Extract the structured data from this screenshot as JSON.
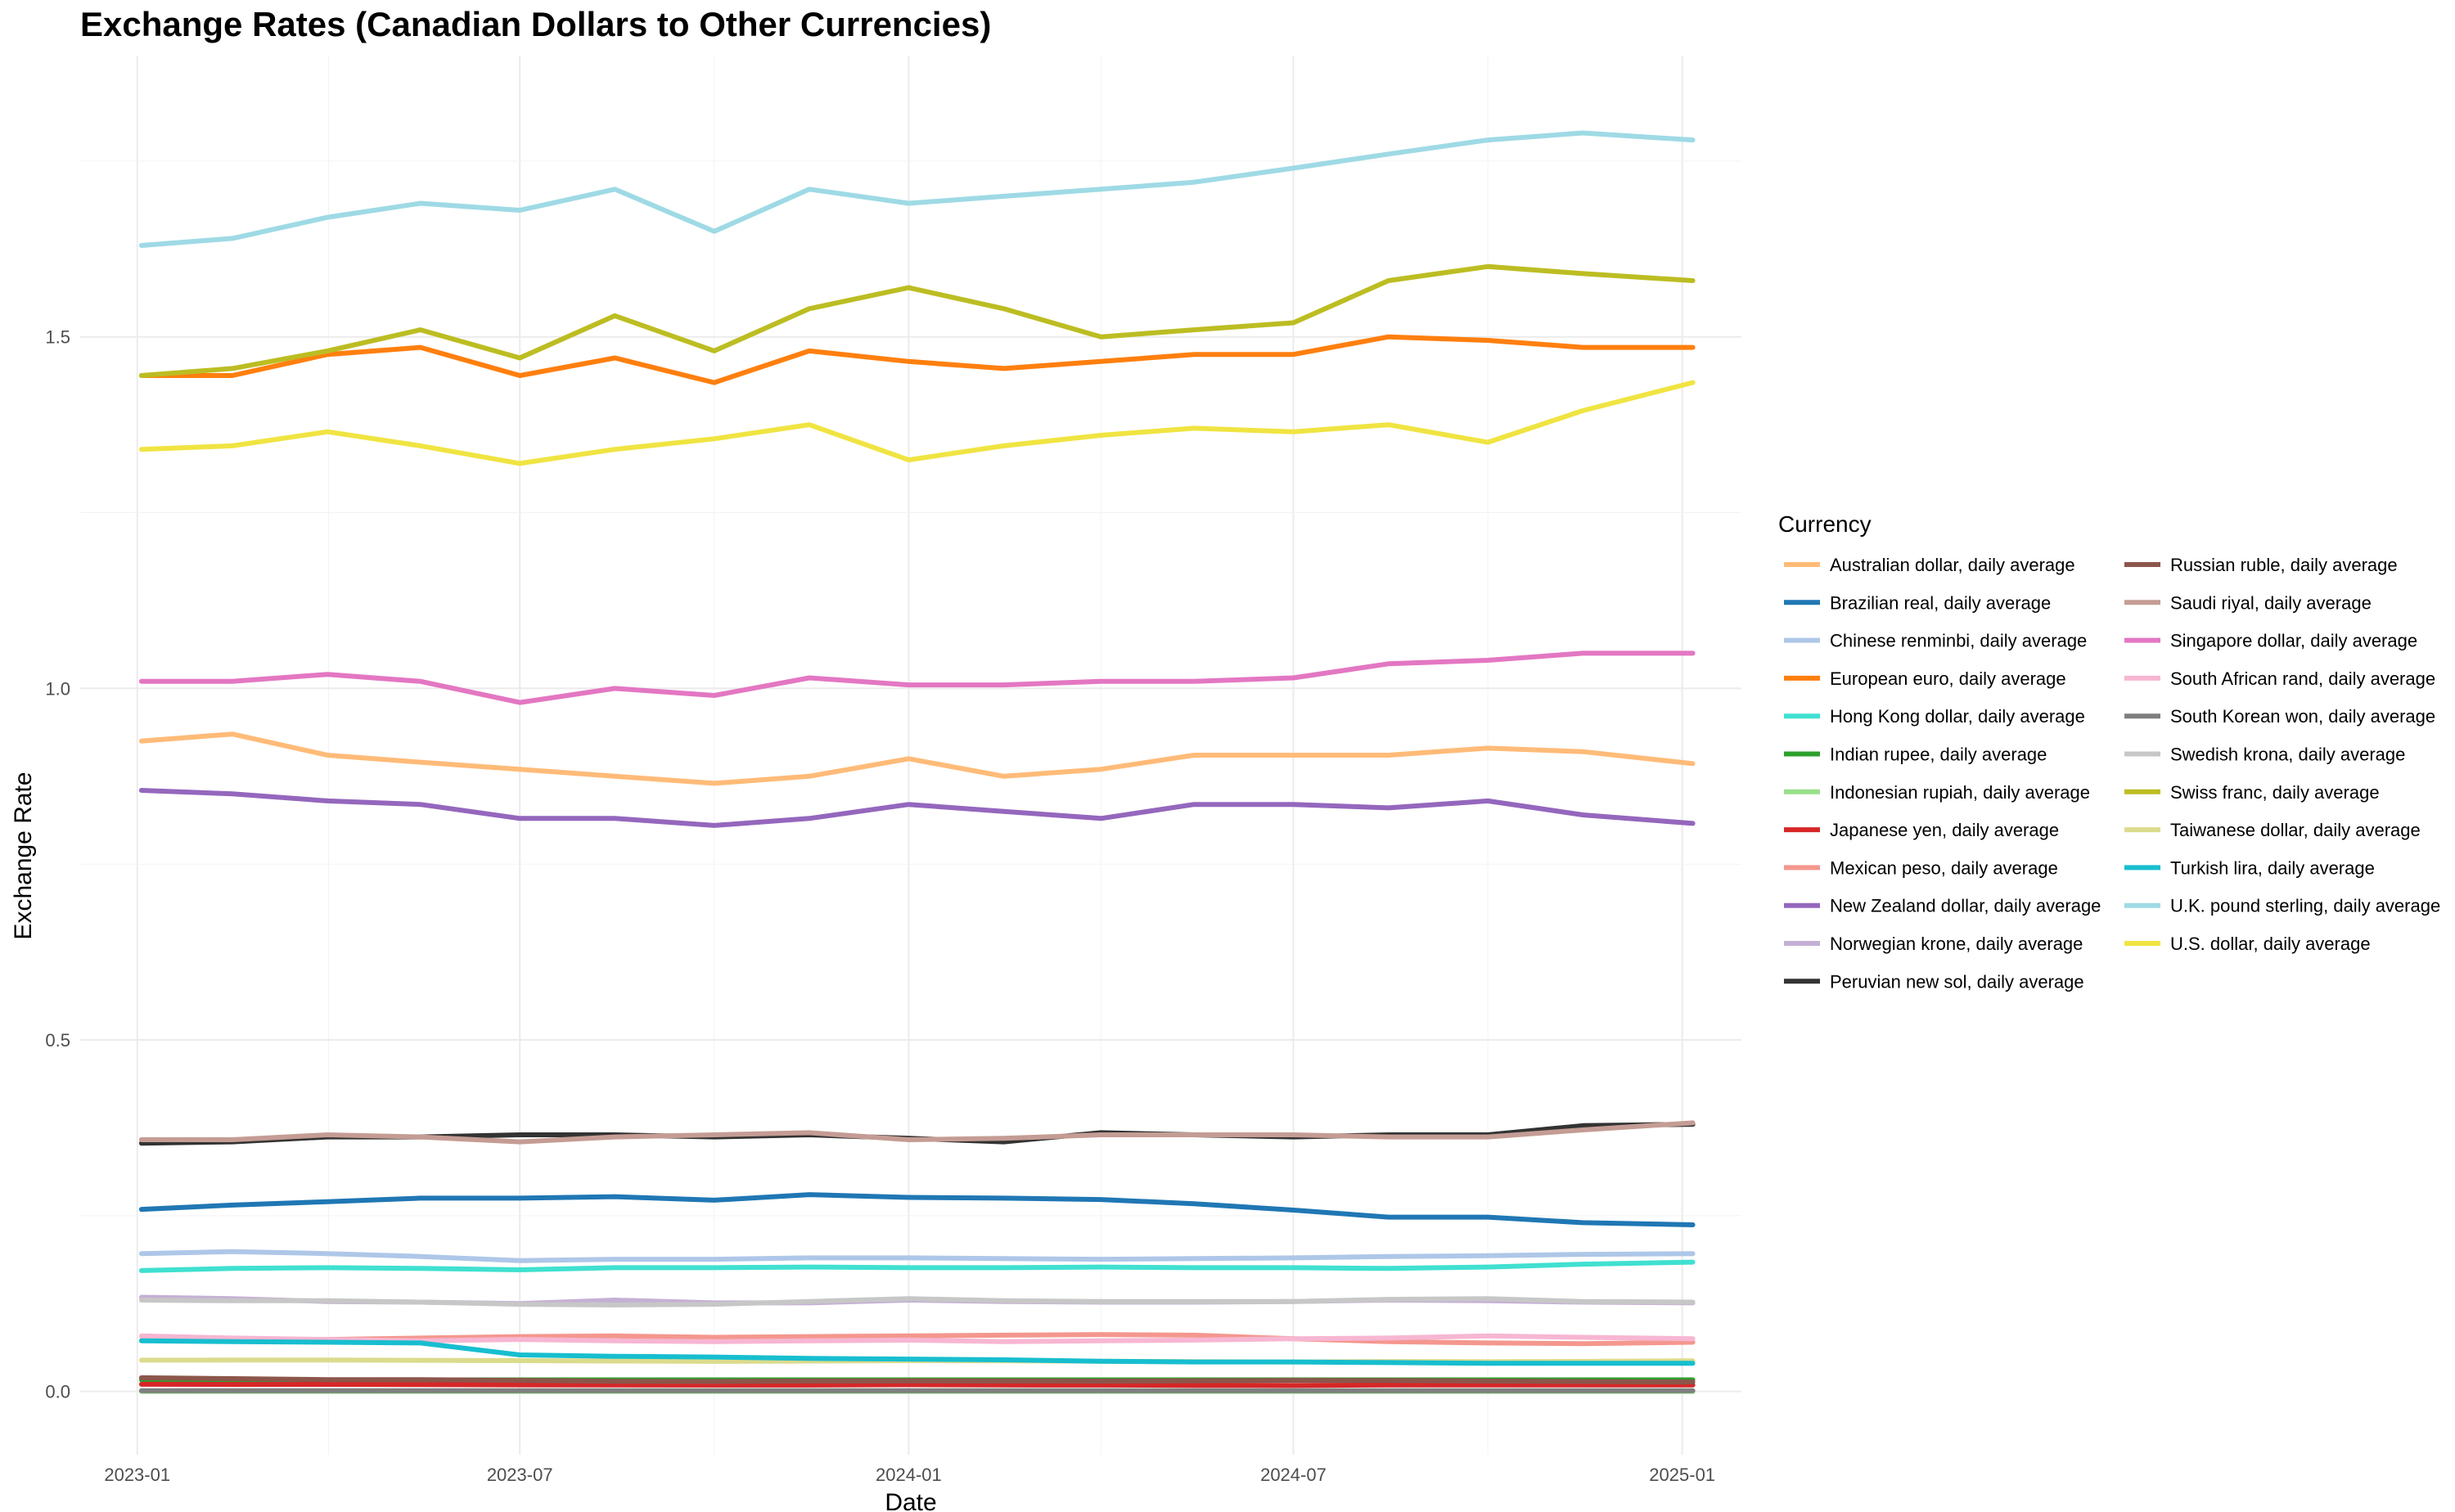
{
  "chart_data": {
    "type": "line",
    "title": "Exchange Rates (Canadian Dollars to Other Currencies)",
    "xlabel": "Date",
    "ylabel": "Exchange Rate",
    "x_tick_labels": [
      "2023-01",
      "2023-07",
      "2024-01",
      "2024-07",
      "2025-01"
    ],
    "y_tick_labels": [
      "0.0",
      "0.5",
      "1.0",
      "1.5"
    ],
    "y_ticks": [
      0,
      0.5,
      1.0,
      1.5
    ],
    "ylim": [
      -0.09,
      1.9
    ],
    "xlim": [
      "2022-12-05",
      "2025-01-29"
    ],
    "x": [
      "2023-01-03",
      "2023-02-15",
      "2023-04-01",
      "2023-05-15",
      "2023-07-01",
      "2023-08-15",
      "2023-10-01",
      "2023-11-15",
      "2024-01-01",
      "2024-02-15",
      "2024-04-01",
      "2024-05-15",
      "2024-07-01",
      "2024-08-15",
      "2024-10-01",
      "2024-11-15",
      "2025-01-06"
    ],
    "grid": true,
    "legend": {
      "title": "Currency",
      "position": "right",
      "columns": 2
    },
    "series": [
      {
        "name": "Australian dollar, daily average",
        "color": "#ffbb78",
        "values": [
          0.925,
          0.935,
          0.905,
          0.895,
          0.885,
          0.875,
          0.865,
          0.875,
          0.9,
          0.875,
          0.885,
          0.905,
          0.905,
          0.905,
          0.915,
          0.91,
          0.893
        ]
      },
      {
        "name": "Brazilian real, daily average",
        "color": "#1f77b4",
        "values": [
          0.259,
          0.265,
          0.27,
          0.275,
          0.275,
          0.277,
          0.272,
          0.28,
          0.276,
          0.275,
          0.273,
          0.267,
          0.258,
          0.248,
          0.248,
          0.24,
          0.237
        ]
      },
      {
        "name": "Chinese renminbi, daily average",
        "color": "#aec7e8",
        "values": [
          0.196,
          0.199,
          0.196,
          0.192,
          0.186,
          0.188,
          0.188,
          0.19,
          0.19,
          0.189,
          0.188,
          0.189,
          0.19,
          0.192,
          0.193,
          0.195,
          0.196
        ]
      },
      {
        "name": "European euro, daily average",
        "color": "#ff7f0e",
        "values": [
          1.445,
          1.445,
          1.475,
          1.485,
          1.445,
          1.47,
          1.435,
          1.48,
          1.465,
          1.455,
          1.465,
          1.475,
          1.475,
          1.5,
          1.495,
          1.485,
          1.485
        ]
      },
      {
        "name": "Hong Kong dollar, daily average",
        "color": "#40e0d0",
        "values": [
          0.172,
          0.175,
          0.176,
          0.175,
          0.173,
          0.176,
          0.176,
          0.177,
          0.176,
          0.176,
          0.177,
          0.176,
          0.176,
          0.175,
          0.177,
          0.181,
          0.184
        ]
      },
      {
        "name": "Indian rupee, daily average",
        "color": "#2ca02c",
        "values": [
          0.0165,
          0.0165,
          0.0165,
          0.0165,
          0.0165,
          0.0165,
          0.0165,
          0.0165,
          0.0165,
          0.0165,
          0.0165,
          0.0165,
          0.0165,
          0.0165,
          0.0165,
          0.0165,
          0.0165
        ]
      },
      {
        "name": "Indonesian rupiah, daily average",
        "color": "#98df8a",
        "values": [
          0.0001,
          0.0001,
          0.0001,
          0.0001,
          0.0001,
          0.0001,
          0.0001,
          0.0001,
          0.0001,
          0.0001,
          0.0001,
          0.0001,
          0.0001,
          0.0001,
          0.0001,
          0.0001,
          0.0001
        ]
      },
      {
        "name": "Japanese yen, daily average",
        "color": "#d62728",
        "values": [
          0.0102,
          0.01,
          0.0101,
          0.0098,
          0.0094,
          0.0093,
          0.009,
          0.009,
          0.0096,
          0.0091,
          0.009,
          0.0087,
          0.0085,
          0.0093,
          0.0093,
          0.0091,
          0.0091
        ]
      },
      {
        "name": "Mexican peso, daily average",
        "color": "#f4978e",
        "values": [
          0.0725,
          0.073,
          0.074,
          0.076,
          0.078,
          0.079,
          0.077,
          0.078,
          0.079,
          0.08,
          0.081,
          0.08,
          0.075,
          0.071,
          0.069,
          0.068,
          0.07
        ]
      },
      {
        "name": "New Zealand dollar, daily average",
        "color": "#9467bd",
        "values": [
          0.855,
          0.85,
          0.84,
          0.835,
          0.815,
          0.815,
          0.805,
          0.815,
          0.835,
          0.825,
          0.815,
          0.835,
          0.835,
          0.83,
          0.84,
          0.82,
          0.808
        ]
      },
      {
        "name": "Norwegian krone, daily average",
        "color": "#c5b0d5",
        "values": [
          0.134,
          0.132,
          0.128,
          0.127,
          0.125,
          0.13,
          0.126,
          0.126,
          0.13,
          0.128,
          0.127,
          0.127,
          0.128,
          0.13,
          0.129,
          0.127,
          0.126
        ]
      },
      {
        "name": "Peruvian new sol, daily average",
        "color": "#333333",
        "values": [
          0.353,
          0.355,
          0.362,
          0.362,
          0.365,
          0.365,
          0.362,
          0.365,
          0.36,
          0.355,
          0.368,
          0.365,
          0.362,
          0.365,
          0.365,
          0.378,
          0.38
        ]
      },
      {
        "name": "Russian ruble, daily average",
        "color": "#8c564b",
        "values": [
          0.0195,
          0.0182,
          0.0168,
          0.0168,
          0.0158,
          0.0145,
          0.0142,
          0.0148,
          0.0151,
          0.0149,
          0.0147,
          0.0152,
          0.0158,
          0.0155,
          0.0147,
          0.0141,
          0.0135
        ]
      },
      {
        "name": "Saudi riyal, daily average",
        "color": "#c49c94",
        "values": [
          0.358,
          0.358,
          0.365,
          0.362,
          0.355,
          0.362,
          0.365,
          0.368,
          0.358,
          0.36,
          0.365,
          0.365,
          0.365,
          0.362,
          0.362,
          0.372,
          0.382
        ]
      },
      {
        "name": "Singapore dollar, daily average",
        "color": "#e377c2",
        "values": [
          1.01,
          1.01,
          1.02,
          1.01,
          0.98,
          1.0,
          0.99,
          1.015,
          1.005,
          1.005,
          1.01,
          1.01,
          1.015,
          1.035,
          1.04,
          1.05,
          1.05
        ]
      },
      {
        "name": "South African rand, daily average",
        "color": "#f7b6d2",
        "values": [
          0.079,
          0.076,
          0.074,
          0.072,
          0.074,
          0.072,
          0.071,
          0.072,
          0.073,
          0.071,
          0.072,
          0.073,
          0.075,
          0.076,
          0.079,
          0.077,
          0.075
        ]
      },
      {
        "name": "South Korean won, daily average",
        "color": "#7f7f7f",
        "values": [
          0.00106,
          0.00104,
          0.00103,
          0.00102,
          0.00103,
          0.00102,
          0.00101,
          0.00103,
          0.00103,
          0.00101,
          0.00101,
          0.00099,
          0.00099,
          0.00101,
          0.00102,
          0.00099,
          0.00098
        ]
      },
      {
        "name": "Swedish krona, daily average",
        "color": "#c7c7c7",
        "values": [
          0.13,
          0.129,
          0.129,
          0.127,
          0.124,
          0.123,
          0.124,
          0.128,
          0.132,
          0.129,
          0.128,
          0.128,
          0.128,
          0.131,
          0.132,
          0.128,
          0.127
        ]
      },
      {
        "name": "Swiss franc, daily average",
        "color": "#bcbd22",
        "values": [
          1.445,
          1.455,
          1.48,
          1.51,
          1.47,
          1.53,
          1.48,
          1.54,
          1.57,
          1.54,
          1.5,
          1.51,
          1.52,
          1.58,
          1.6,
          1.59,
          1.58
        ]
      },
      {
        "name": "Taiwanese dollar, daily average",
        "color": "#dbdb8d",
        "values": [
          0.0445,
          0.0447,
          0.0446,
          0.0443,
          0.0438,
          0.0432,
          0.0428,
          0.0432,
          0.0438,
          0.0436,
          0.0429,
          0.0423,
          0.042,
          0.0426,
          0.0424,
          0.0428,
          0.0436
        ]
      },
      {
        "name": "Turkish lira, daily average",
        "color": "#17becf",
        "values": [
          0.072,
          0.071,
          0.07,
          0.069,
          0.052,
          0.05,
          0.049,
          0.047,
          0.046,
          0.045,
          0.043,
          0.042,
          0.042,
          0.041,
          0.04,
          0.04,
          0.04
        ]
      },
      {
        "name": "U.K. pound sterling, daily average",
        "color": "#9edae5",
        "values": [
          1.63,
          1.64,
          1.67,
          1.69,
          1.68,
          1.71,
          1.65,
          1.71,
          1.69,
          1.7,
          1.71,
          1.72,
          1.74,
          1.76,
          1.78,
          1.79,
          1.78
        ]
      },
      {
        "name": "U.S. dollar, daily average",
        "color": "#f0e442",
        "values": [
          1.34,
          1.345,
          1.365,
          1.345,
          1.32,
          1.34,
          1.355,
          1.375,
          1.325,
          1.345,
          1.36,
          1.37,
          1.365,
          1.375,
          1.35,
          1.395,
          1.435
        ]
      }
    ]
  }
}
